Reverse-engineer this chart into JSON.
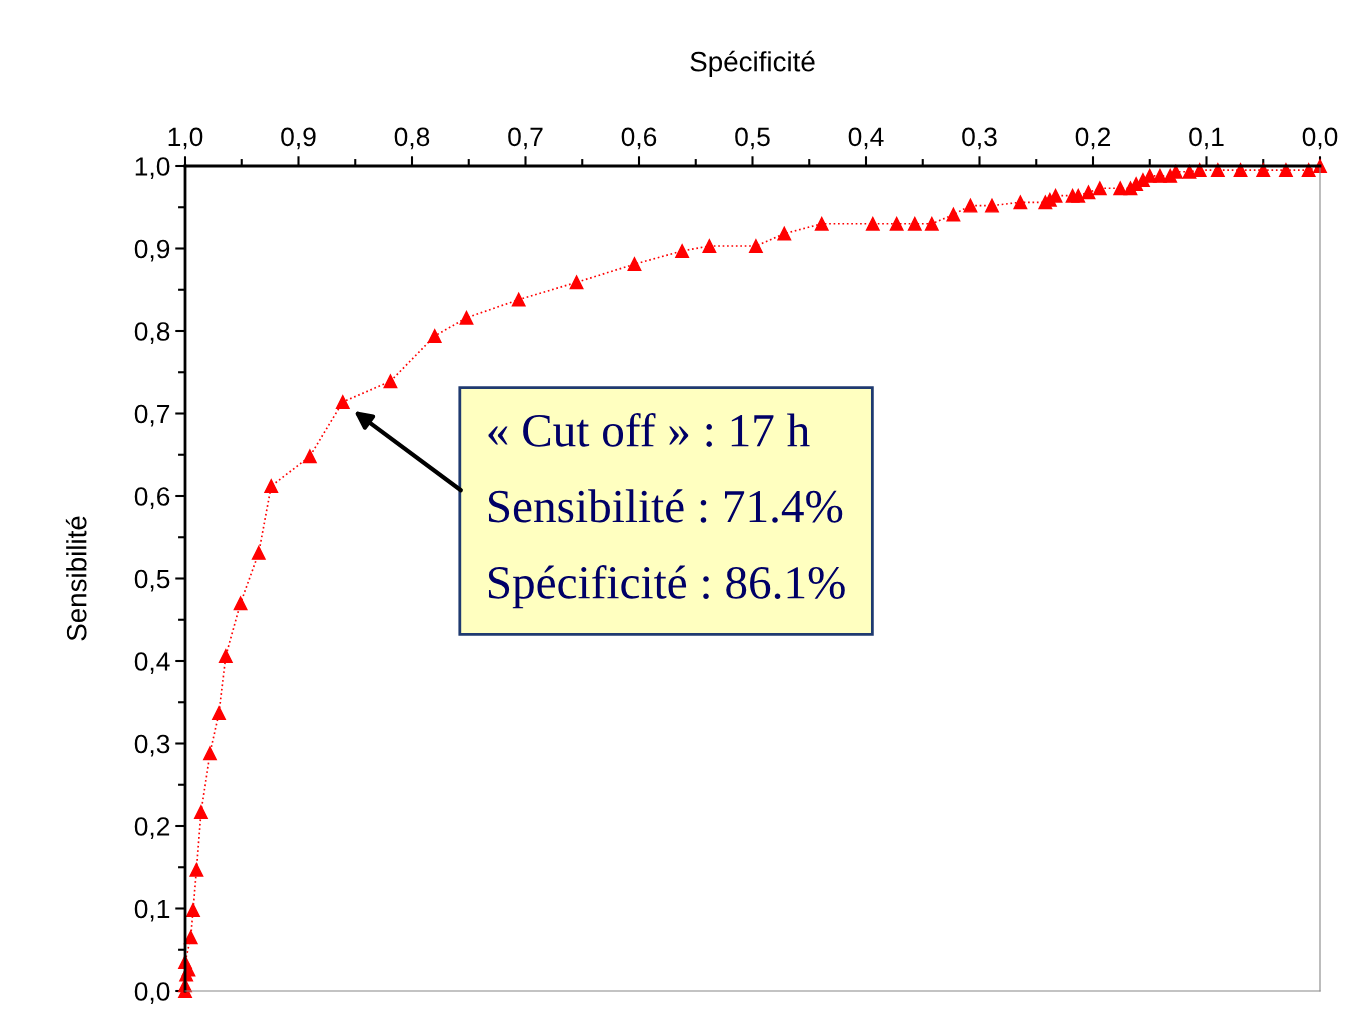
{
  "chart_data": {
    "type": "line",
    "xlabel": "Spécificité",
    "ylabel": "Sensibilité",
    "x": [
      1.0,
      1.0,
      0.999,
      0.997,
      1.0,
      0.995,
      0.993,
      0.99,
      0.986,
      0.978,
      0.97,
      0.964,
      0.951,
      0.935,
      0.924,
      0.89,
      0.861,
      0.819,
      0.78,
      0.752,
      0.706,
      0.655,
      0.604,
      0.562,
      0.538,
      0.497,
      0.472,
      0.439,
      0.394,
      0.373,
      0.357,
      0.342,
      0.323,
      0.308,
      0.289,
      0.264,
      0.242,
      0.238,
      0.233,
      0.218,
      0.213,
      0.204,
      0.194,
      0.176,
      0.167,
      0.162,
      0.156,
      0.15,
      0.141,
      0.132,
      0.127,
      0.115,
      0.106,
      0.09,
      0.07,
      0.05,
      0.03,
      0.01,
      0.0
    ],
    "series": [
      {
        "color": "#ff0000",
        "values": [
          0.0,
          0.007,
          0.02,
          0.026,
          0.035,
          0.065,
          0.098,
          0.147,
          0.217,
          0.288,
          0.337,
          0.406,
          0.47,
          0.531,
          0.612,
          0.648,
          0.714,
          0.739,
          0.794,
          0.816,
          0.838,
          0.859,
          0.881,
          0.897,
          0.903,
          0.903,
          0.918,
          0.93,
          0.93,
          0.93,
          0.93,
          0.93,
          0.941,
          0.952,
          0.952,
          0.956,
          0.956,
          0.959,
          0.964,
          0.964,
          0.964,
          0.968,
          0.973,
          0.973,
          0.973,
          0.978,
          0.983,
          0.988,
          0.988,
          0.988,
          0.993,
          0.993,
          0.995,
          0.995,
          0.995,
          0.995,
          0.995,
          0.995,
          1.0
        ]
      }
    ],
    "xlim": [
      1.0,
      0.0
    ],
    "xticks": [
      {
        "value": 1.0,
        "label": "1,0"
      },
      {
        "value": 0.9,
        "label": "0,9"
      },
      {
        "value": 0.8,
        "label": "0,8"
      },
      {
        "value": 0.7,
        "label": "0,7"
      },
      {
        "value": 0.6,
        "label": "0,6"
      },
      {
        "value": 0.5,
        "label": "0,5"
      },
      {
        "value": 0.4,
        "label": "0,4"
      },
      {
        "value": 0.3,
        "label": "0,3"
      },
      {
        "value": 0.2,
        "label": "0,2"
      },
      {
        "value": 0.1,
        "label": "0,1"
      },
      {
        "value": 0.0,
        "label": "0,0"
      }
    ],
    "ylim": [
      0.0,
      1.0
    ],
    "yticks": [
      {
        "value": 0.0,
        "label": "0,0"
      },
      {
        "value": 0.1,
        "label": "0,1"
      },
      {
        "value": 0.2,
        "label": "0,2"
      },
      {
        "value": 0.3,
        "label": "0,3"
      },
      {
        "value": 0.4,
        "label": "0,4"
      },
      {
        "value": 0.5,
        "label": "0,5"
      },
      {
        "value": 0.6,
        "label": "0,6"
      },
      {
        "value": 0.7,
        "label": "0,7"
      },
      {
        "value": 0.8,
        "label": "0,8"
      },
      {
        "value": 0.9,
        "label": "0,9"
      },
      {
        "value": 1.0,
        "label": "1,0"
      }
    ],
    "annotations": [
      "« Cut off » : 17 h\n\nSensibilité : 71.4%\n\nSpécificité : 86.1%"
    ],
    "marker": "triangle",
    "line_style": "dotted",
    "grid": false,
    "legend": false
  }
}
